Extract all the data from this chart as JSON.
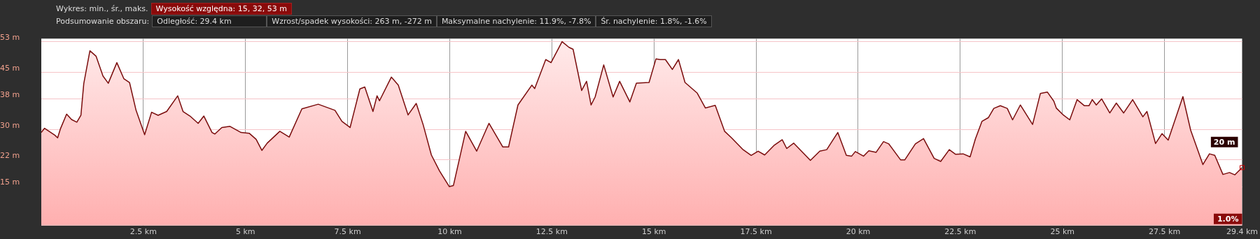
{
  "chart_data": {
    "type": "area",
    "title": "Wykres: min., śr., maks.",
    "subtitle": "Podsumowanie obszaru:",
    "annotations": [
      "Wysokość względna: 15, 32, 53 m",
      "Odległość: 29.4 km",
      "Wzrost/spadek wysokości: 263 m, -272 m",
      "Maksymalne nachylenie: 11.9%, -7.8%",
      "Śr. nachylenie: 1.8%, -1.6%",
      {
        "text": "20 m",
        "x": 29.4,
        "y": 20
      },
      "1.0%"
    ],
    "xlim": [
      0,
      29.4
    ],
    "ylim": [
      4.8,
      53.8
    ],
    "xticks": [
      {
        "value": 2.5,
        "label": "2.5 km"
      },
      {
        "value": 5,
        "label": "5 km"
      },
      {
        "value": 7.5,
        "label": "7.5 km"
      },
      {
        "value": 10,
        "label": "10 km"
      },
      {
        "value": 12.5,
        "label": "12.5 km"
      },
      {
        "value": 15,
        "label": "15 km"
      },
      {
        "value": 17.5,
        "label": "17.5 km"
      },
      {
        "value": 20,
        "label": "20 km"
      },
      {
        "value": 22.5,
        "label": "22.5 km"
      },
      {
        "value": 25,
        "label": "25 km"
      },
      {
        "value": 27.5,
        "label": "27.5 km"
      },
      {
        "value": 29.4,
        "label": "29.4 km"
      }
    ],
    "yticks": [
      {
        "value": 15,
        "label": "15 m"
      },
      {
        "value": 22,
        "label": "22 m"
      },
      {
        "value": 30,
        "label": "30 m"
      },
      {
        "value": 38,
        "label": "38 m"
      },
      {
        "value": 45,
        "label": "45 m"
      },
      {
        "value": 53,
        "label": "53 m"
      }
    ],
    "grid": true,
    "marker": "none",
    "series": [
      {
        "color": "#7a0c0c",
        "x": [
          0,
          0.08,
          0.33,
          0.4,
          0.47,
          0.62,
          0.74,
          0.87,
          0.97,
          1.04,
          1.19,
          1.34,
          1.51,
          1.64,
          1.85,
          2.02,
          2.16,
          2.32,
          2.53,
          2.7,
          2.86,
          3.07,
          3.34,
          3.47,
          3.64,
          3.84,
          3.98,
          4.18,
          4.25,
          4.42,
          4.62,
          4.89,
          5.09,
          5.26,
          5.4,
          5.53,
          5.84,
          6.07,
          6.38,
          6.78,
          7.19,
          7.36,
          7.56,
          7.8,
          7.92,
          8.12,
          8.22,
          8.28,
          8.57,
          8.74,
          8.98,
          9.18,
          9.35,
          9.55,
          9.75,
          9.99,
          10.09,
          10.39,
          10.66,
          10.96,
          11.3,
          11.44,
          11.67,
          12.01,
          12.08,
          12.35,
          12.48,
          12.75,
          12.92,
          13.02,
          13.23,
          13.35,
          13.46,
          13.56,
          13.77,
          14,
          14.16,
          14.41,
          14.57,
          14.88,
          15.05,
          15.15,
          15.28,
          15.45,
          15.6,
          15.76,
          16.06,
          16.26,
          16.5,
          16.73,
          16.9,
          17.17,
          17.38,
          17.55,
          17.71,
          17.95,
          18.14,
          18.25,
          18.42,
          18.83,
          19.06,
          19.23,
          19.5,
          19.71,
          19.84,
          19.93,
          20.13,
          20.26,
          20.44,
          20.62,
          20.75,
          21.04,
          21.14,
          21.4,
          21.6,
          21.86,
          22.02,
          22.23,
          22.38,
          22.57,
          22.74,
          22.87,
          23.03,
          23.19,
          23.32,
          23.48,
          23.65,
          23.78,
          23.97,
          24.27,
          24.46,
          24.63,
          24.79,
          24.85,
          25.02,
          25.18,
          25.36,
          25.54,
          25.65,
          25.73,
          25.83,
          25.96,
          26.16,
          26.32,
          26.5,
          26.72,
          26.97,
          27.07,
          27.28,
          27.44,
          27.59,
          27.79,
          27.95,
          28.14,
          28.44,
          28.6,
          28.73,
          28.93,
          29.09,
          29.22,
          29.4
        ],
        "values": [
          29.2,
          30.3,
          28.5,
          27.8,
          30.2,
          34,
          32.6,
          31.9,
          33.7,
          42,
          50.6,
          49.2,
          44,
          42.1,
          47.5,
          43.3,
          42.3,
          35,
          28.6,
          34.5,
          33.7,
          34.7,
          38.8,
          34.7,
          33.5,
          31.6,
          33.5,
          29.2,
          28.8,
          30.5,
          30.8,
          29.2,
          29,
          27.4,
          24.5,
          26.4,
          29.5,
          28,
          35.4,
          36.6,
          35,
          32.1,
          30.5,
          40.6,
          41.1,
          34.7,
          38.8,
          37.5,
          43.7,
          41.6,
          33.8,
          36.8,
          31.2,
          23.3,
          19.1,
          15,
          15.3,
          29.5,
          24.3,
          31.6,
          25.4,
          25.4,
          36.4,
          41.6,
          40.7,
          48.3,
          47.5,
          53,
          51.5,
          51,
          40.2,
          42.6,
          36.4,
          38.5,
          46.9,
          38.5,
          42.6,
          37.2,
          42.1,
          42.3,
          48.5,
          48.3,
          48.3,
          45.7,
          48.3,
          42.3,
          39.5,
          35.6,
          36.3,
          29.5,
          27.8,
          24.8,
          23.2,
          24.3,
          23.3,
          25.9,
          27.3,
          25,
          26.4,
          21.9,
          24.3,
          24.7,
          29.2,
          23.2,
          23,
          24.2,
          23,
          24.4,
          24,
          26.8,
          26.2,
          22,
          22,
          26.2,
          27.6,
          22.4,
          21.6,
          24.7,
          23.5,
          23.6,
          22.8,
          27.5,
          32.1,
          33.1,
          35.5,
          36.2,
          35.5,
          32.5,
          36.4,
          31.3,
          39.4,
          39.8,
          37.4,
          35.6,
          33.8,
          32.5,
          37.8,
          36.2,
          36.2,
          37.8,
          36.4,
          38,
          34.3,
          36.9,
          34.3,
          37.8,
          33.3,
          34.7,
          26.3,
          28.9,
          27.2,
          33.5,
          38.6,
          29.8,
          20.8,
          23.6,
          23.2,
          18.2,
          18.7,
          18.1,
          20
        ]
      }
    ]
  }
}
